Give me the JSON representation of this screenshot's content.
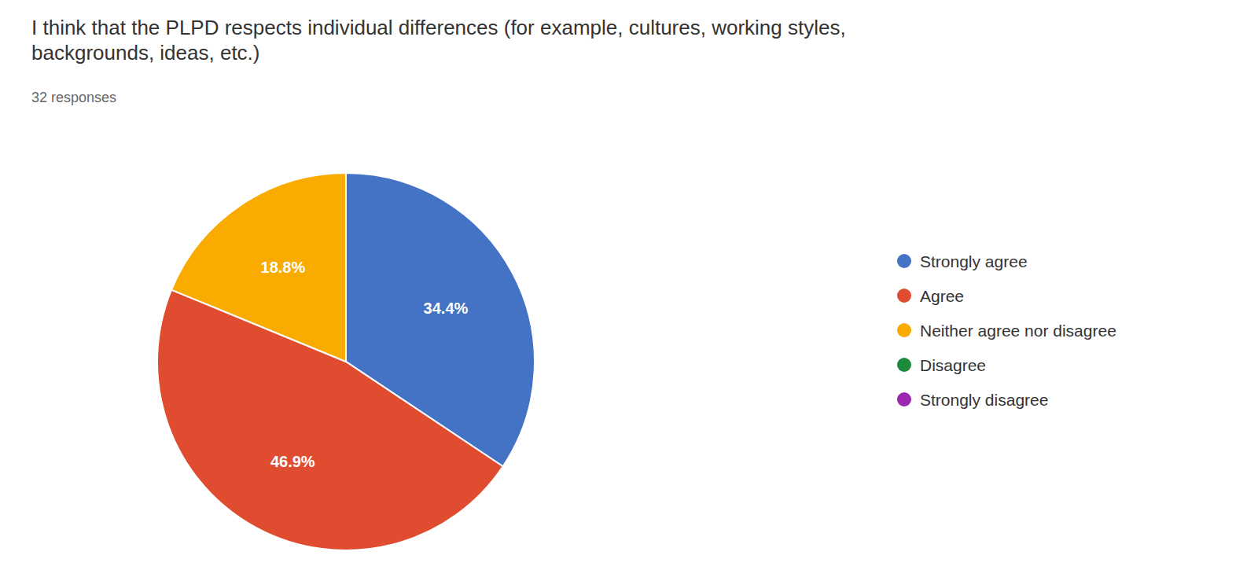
{
  "chart_data": {
    "type": "pie",
    "title": "I think that the PLPD respects individual differences (for example, cultures, working styles,\nbackgrounds, ideas, etc.)",
    "subtitle": "32 responses",
    "categories": [
      "Strongly agree",
      "Agree",
      "Neither agree nor disagree",
      "Disagree",
      "Strongly disagree"
    ],
    "values": [
      34.4,
      46.9,
      18.8,
      0.0,
      0.0
    ],
    "value_labels": [
      "34.4%",
      "46.9%",
      "18.8%",
      null,
      null
    ],
    "colors": [
      "#4472C4",
      "#E04C2F",
      "#F9AB00",
      "#1E8A3C",
      "#9C27B0"
    ],
    "data_labels": true,
    "legend": "right"
  }
}
